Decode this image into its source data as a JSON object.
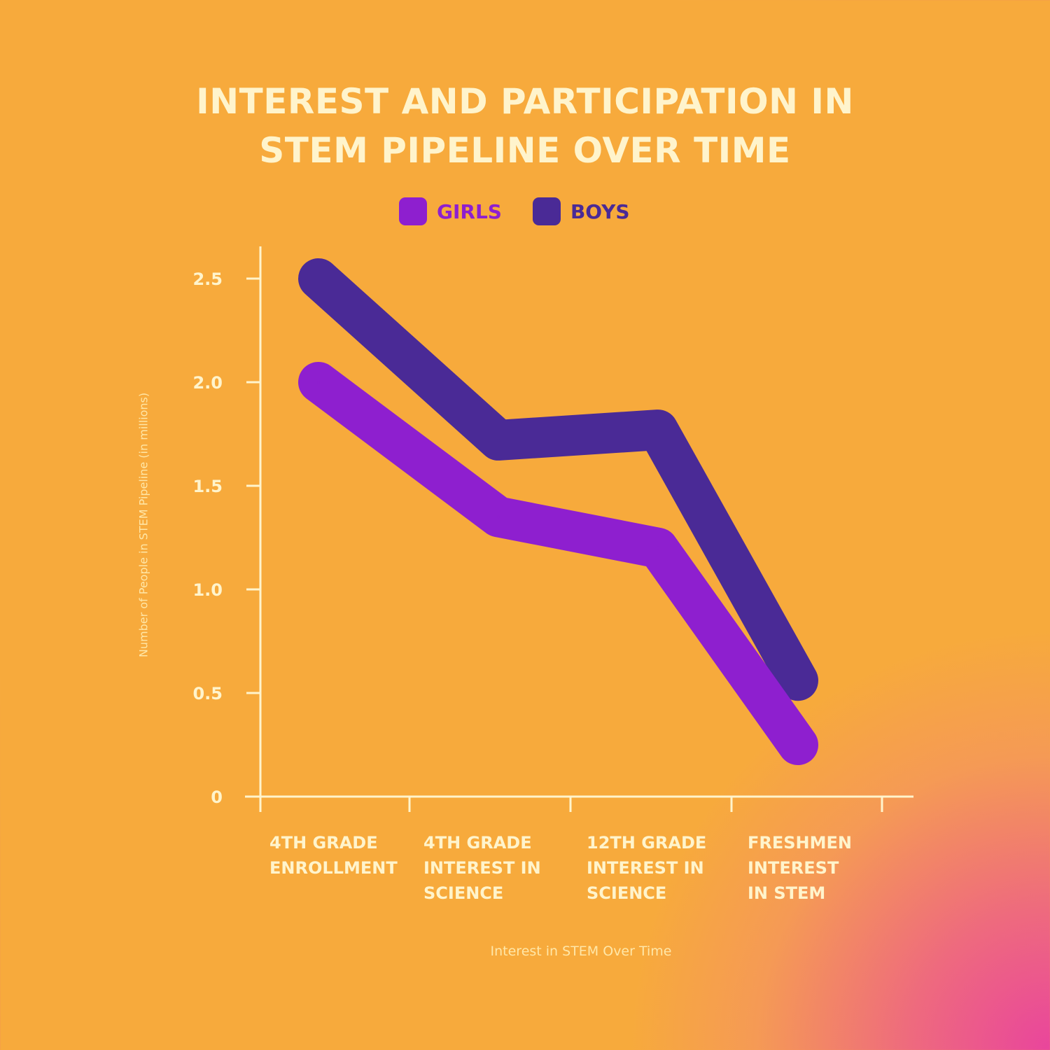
{
  "chart_data": {
    "type": "line",
    "title": "INTEREST AND PARTICIPATION IN STEM PIPELINE OVER TIME",
    "categories": [
      "4TH GRADE ENROLLMENT",
      "4TH GRADE INTEREST IN SCIENCE",
      "12TH GRADE INTEREST IN SCIENCE",
      "FRESHMEN INTEREST IN STEM"
    ],
    "series": [
      {
        "name": "GIRLS",
        "color": "#8e1fcf",
        "values": [
          2.0,
          1.35,
          1.2,
          0.25
        ]
      },
      {
        "name": "BOYS",
        "color": "#4a2a96",
        "values": [
          2.5,
          1.72,
          1.77,
          0.56
        ]
      }
    ],
    "xlabel": "Interest in STEM Over Time",
    "ylabel": "Number of People in STEM Pipeline (in millions)",
    "ylim": [
      0,
      2.5
    ],
    "yticks": [
      "0",
      "0.5",
      "1.0",
      "1.5",
      "2.0",
      "2.5"
    ],
    "grid": false,
    "legend": "top-center",
    "colors": {
      "background": "#f7aa3c",
      "background_corner": "#e9459c",
      "text": "#fff4cc"
    }
  }
}
